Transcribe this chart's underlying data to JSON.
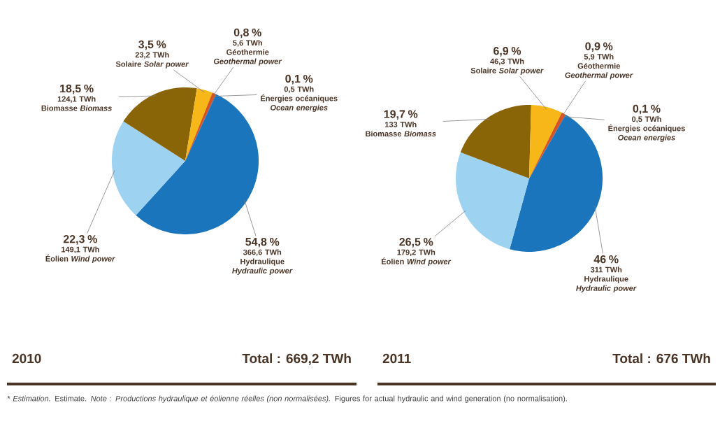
{
  "chart_data": [
    {
      "type": "pie",
      "title": "2010",
      "subtitle": "Total : 669,2 TWh",
      "categories": [
        "Hydraulique *Hydraulic power*",
        "Éolien *Wind power*",
        "Biomasse *Biomass*",
        "Solaire *Solar power*",
        "Géothermie *Geothermal power*",
        "Énergies océaniques *Ocean energies*"
      ],
      "values": [
        54.8,
        22.3,
        18.5,
        3.5,
        0.8,
        0.1
      ],
      "value_labels": [
        "54,8 %",
        "22,3 %",
        "18,5 %",
        "3,5 %",
        "0,8 %",
        "0,1 %"
      ],
      "colors": [
        "#1a75bc",
        "#9dd3f0",
        "#8a6508",
        "#f7b718",
        "#d9531e",
        "#1f4e8c"
      ],
      "annotations": [
        {
          "text": "366,6 TWh",
          "x": "Hydraulique *Hydraulic power*"
        },
        {
          "text": "149,1 TWh",
          "x": "Éolien *Wind power*"
        },
        {
          "text": "124,1 TWh",
          "x": "Biomasse *Biomass*"
        },
        {
          "text": "23,2 TWh",
          "x": "Solaire *Solar power*"
        },
        {
          "text": "5,6 TWh",
          "x": "Géothermie *Geothermal power*"
        },
        {
          "text": "0,5 TWh",
          "x": "Énergies océaniques *Ocean energies*"
        }
      ]
    },
    {
      "type": "pie",
      "title": "2011",
      "subtitle": "Total : 676 TWh",
      "categories": [
        "Hydraulique *Hydraulic power*",
        "Éolien *Wind power*",
        "Biomasse *Biomass*",
        "Solaire *Solar power*",
        "Géothermie *Geothermal power*",
        "Énergies océaniques *Ocean energies*"
      ],
      "values": [
        46,
        26.5,
        19.7,
        6.9,
        0.9,
        0.1
      ],
      "value_labels": [
        "46 %",
        "26,5 %",
        "19,7 %",
        "6,9 %",
        "0,9 %",
        "0,1 %"
      ],
      "colors": [
        "#1a75bc",
        "#9dd3f0",
        "#8a6508",
        "#f7b718",
        "#d9531e",
        "#1f4e8c"
      ],
      "annotations": [
        {
          "text": "311 TWh",
          "x": "Hydraulique *Hydraulic power*"
        },
        {
          "text": "179,2 TWh",
          "x": "Éolien *Wind power*"
        },
        {
          "text": "133 TWh",
          "x": "Biomasse *Biomass*"
        },
        {
          "text": "46,3 TWh",
          "x": "Solaire *Solar power*"
        },
        {
          "text": "5,9 TWh",
          "x": "Géothermie *Geothermal power*"
        },
        {
          "text": "0,5 TWh",
          "x": "Énergies océaniques *Ocean energies*"
        },
        "* *Estimation.* Estimate. *Note : Productions hydraulique et éolienne réelles (non normalisées).* Figures for actual hydraulic and wind generation (no normalisation)."
      ]
    }
  ]
}
